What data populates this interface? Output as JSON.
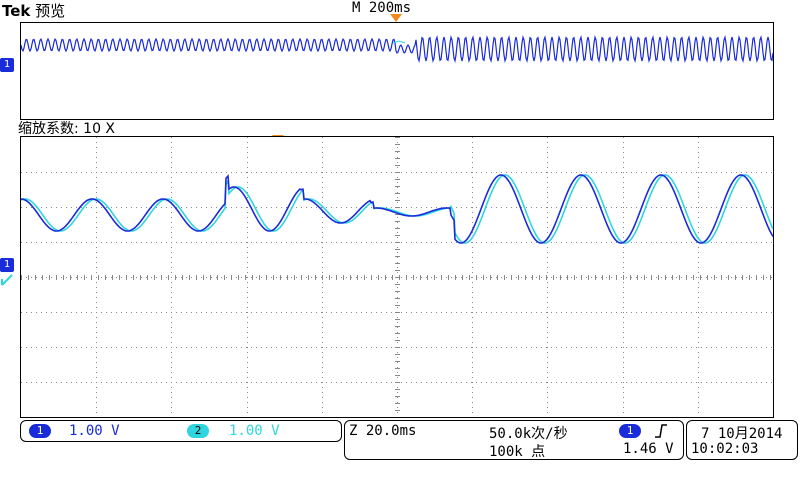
{
  "header": {
    "brand": "Tek",
    "mode": "预览",
    "timebase": "M 200ms"
  },
  "zoom": {
    "label": "缩放系数: 10 X"
  },
  "channels": [
    {
      "number": "1",
      "scale": "1.00 V",
      "color": "#1a2bd9"
    },
    {
      "number": "2",
      "scale": "1.00 V",
      "color": "#2fd6e0"
    }
  ],
  "acquisition": {
    "zoom_time": "Z 20.0ms",
    "sample_rate": "50.0k次/秒",
    "record_length": "100k 点"
  },
  "trigger": {
    "source": "1",
    "slope_icon": "rising-edge-icon",
    "level": "1.46 V"
  },
  "datetime": {
    "date": "7 10月2014",
    "time": "10:02:03"
  },
  "ground_marker": {
    "label": "1"
  },
  "colors": {
    "ch1": "#1a2bd9",
    "ch2": "#2fd6e0",
    "trigger_marker": "#f08a1c",
    "grid": "#888888"
  }
}
